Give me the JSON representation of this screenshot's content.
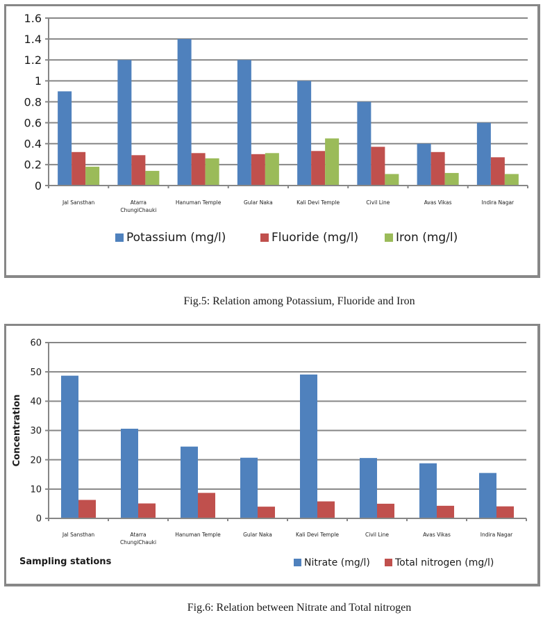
{
  "chart_data": [
    {
      "type": "bar",
      "title": "",
      "xlabel": "",
      "ylabel": "",
      "ylim": [
        0,
        1.6
      ],
      "yticks": [
        "0",
        "0.2",
        "0.4",
        "0.6",
        "0.8",
        "1",
        "1.2",
        "1.4",
        "1.6"
      ],
      "ytick_values": [
        0,
        0.2,
        0.4,
        0.6,
        0.8,
        1.0,
        1.2,
        1.4,
        1.6
      ],
      "grid": true,
      "legend_position": "bottom",
      "categories": [
        "Jal Sansthan",
        "Atarra ChungiChauki",
        "Hanuman Temple",
        "Gular Naka",
        "Kali Devi Temple",
        "Civil Line",
        "Avas Vikas",
        "Indira  Nagar"
      ],
      "category_lines": [
        [
          "Jal Sansthan"
        ],
        [
          "Atarra",
          "ChungiChauki"
        ],
        [
          "Hanuman Temple"
        ],
        [
          "Gular Naka"
        ],
        [
          "Kali Devi Temple"
        ],
        [
          "Civil Line"
        ],
        [
          "Avas Vikas"
        ],
        [
          "Indira  Nagar"
        ]
      ],
      "series": [
        {
          "name": "Potassium (mg/l)",
          "color": "#4f81bd",
          "values": [
            0.9,
            1.2,
            1.4,
            1.2,
            1.0,
            0.8,
            0.4,
            0.6
          ]
        },
        {
          "name": "Fluoride (mg/l)",
          "color": "#c0504d",
          "values": [
            0.32,
            0.29,
            0.31,
            0.3,
            0.33,
            0.37,
            0.32,
            0.27
          ]
        },
        {
          "name": "Iron (mg/l)",
          "color": "#9bbb59",
          "values": [
            0.18,
            0.14,
            0.26,
            0.31,
            0.45,
            0.11,
            0.12,
            0.11
          ]
        }
      ],
      "caption": "Fig.5: Relation among Potassium, Fluoride and Iron"
    },
    {
      "type": "bar",
      "title": "",
      "xlabel": "Sampling stations",
      "ylabel": "Concentration",
      "ylim": [
        0,
        60
      ],
      "yticks": [
        "0",
        "10",
        "20",
        "30",
        "40",
        "50",
        "60"
      ],
      "ytick_values": [
        0,
        10,
        20,
        30,
        40,
        50,
        60
      ],
      "grid": true,
      "legend_position": "bottom-right",
      "categories": [
        "Jal Sansthan",
        "Atarra ChungiChauki",
        "Hanuman Temple",
        "Gular Naka",
        "Kali Devi Temple",
        "Civil Line",
        "Avas Vikas",
        "Indira  Nagar"
      ],
      "category_lines": [
        [
          "Jal Sansthan"
        ],
        [
          "Atarra",
          "ChungiChauki"
        ],
        [
          "Hanuman Temple"
        ],
        [
          "Gular Naka"
        ],
        [
          "Kali Devi Temple"
        ],
        [
          "Civil Line"
        ],
        [
          "Avas Vikas"
        ],
        [
          "Indira  Nagar"
        ]
      ],
      "series": [
        {
          "name": "Nitrate (mg/l)",
          "color": "#4f81bd",
          "values": [
            48.7,
            30.6,
            24.5,
            20.7,
            49.1,
            20.6,
            18.8,
            15.5
          ]
        },
        {
          "name": "Total nitrogen (mg/l)",
          "color": "#c0504d",
          "values": [
            6.3,
            5.1,
            8.7,
            4.0,
            5.8,
            5.0,
            4.3,
            4.1
          ]
        }
      ],
      "caption": "Fig.6: Relation between Nitrate and Total nitrogen"
    }
  ]
}
